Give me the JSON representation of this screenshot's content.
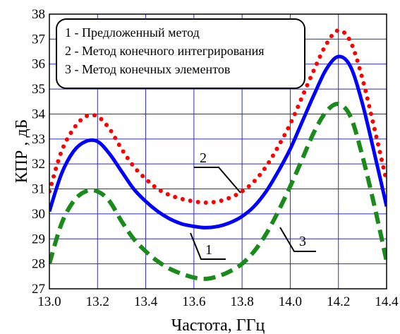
{
  "chart_data": {
    "type": "line",
    "xlabel": "Частота, ГГц",
    "ylabel": "КПР , дБ",
    "xlim": [
      13.0,
      14.4
    ],
    "ylim": [
      27,
      38
    ],
    "x_ticks": [
      "13.0",
      "13.2",
      "13.4",
      "13.6",
      "13.8",
      "14.0",
      "14.2",
      "14.4"
    ],
    "y_ticks": [
      "27",
      "28",
      "29",
      "30",
      "31",
      "32",
      "33",
      "34",
      "35",
      "36",
      "37",
      "38"
    ],
    "grid": true,
    "legend": {
      "placement": "top-left",
      "entries": [
        "1 - Предложенный метод",
        "2 - Метод конечного интегрирования",
        "3 - Метод конечных элементов"
      ]
    },
    "series": [
      {
        "label": "1",
        "style": "solid",
        "color": "#0000ff",
        "points": [
          [
            13.0,
            30.1
          ],
          [
            13.05,
            31.6
          ],
          [
            13.1,
            32.5
          ],
          [
            13.15,
            32.9
          ],
          [
            13.2,
            32.9
          ],
          [
            13.25,
            32.4
          ],
          [
            13.3,
            31.7
          ],
          [
            13.35,
            31.0
          ],
          [
            13.4,
            30.5
          ],
          [
            13.45,
            30.1
          ],
          [
            13.5,
            29.8
          ],
          [
            13.55,
            29.6
          ],
          [
            13.6,
            29.5
          ],
          [
            13.65,
            29.45
          ],
          [
            13.7,
            29.5
          ],
          [
            13.75,
            29.65
          ],
          [
            13.8,
            29.9
          ],
          [
            13.85,
            30.3
          ],
          [
            13.9,
            30.9
          ],
          [
            13.95,
            31.7
          ],
          [
            14.0,
            32.6
          ],
          [
            14.05,
            33.7
          ],
          [
            14.1,
            34.8
          ],
          [
            14.15,
            35.8
          ],
          [
            14.2,
            36.3
          ],
          [
            14.25,
            35.9
          ],
          [
            14.3,
            34.4
          ],
          [
            14.35,
            32.4
          ],
          [
            14.4,
            30.3
          ]
        ]
      },
      {
        "label": "2",
        "style": "dotted",
        "color": "#ff0000",
        "points": [
          [
            13.0,
            30.9
          ],
          [
            13.05,
            32.5
          ],
          [
            13.1,
            33.4
          ],
          [
            13.15,
            33.9
          ],
          [
            13.2,
            33.9
          ],
          [
            13.25,
            33.4
          ],
          [
            13.3,
            32.6
          ],
          [
            13.35,
            31.9
          ],
          [
            13.4,
            31.4
          ],
          [
            13.45,
            31.0
          ],
          [
            13.5,
            30.75
          ],
          [
            13.55,
            30.6
          ],
          [
            13.6,
            30.5
          ],
          [
            13.65,
            30.45
          ],
          [
            13.7,
            30.5
          ],
          [
            13.75,
            30.65
          ],
          [
            13.8,
            30.9
          ],
          [
            13.85,
            31.3
          ],
          [
            13.9,
            31.9
          ],
          [
            13.95,
            32.7
          ],
          [
            14.0,
            33.6
          ],
          [
            14.05,
            34.7
          ],
          [
            14.1,
            35.8
          ],
          [
            14.15,
            36.8
          ],
          [
            14.2,
            37.35
          ],
          [
            14.25,
            36.9
          ],
          [
            14.3,
            35.4
          ],
          [
            14.35,
            33.4
          ],
          [
            14.4,
            31.3
          ]
        ]
      },
      {
        "label": "3",
        "style": "dashed",
        "color": "#1a8a1a",
        "points": [
          [
            13.0,
            28.0
          ],
          [
            13.05,
            29.6
          ],
          [
            13.1,
            30.5
          ],
          [
            13.15,
            30.9
          ],
          [
            13.2,
            30.9
          ],
          [
            13.25,
            30.5
          ],
          [
            13.3,
            29.7
          ],
          [
            13.35,
            29.0
          ],
          [
            13.4,
            28.5
          ],
          [
            13.45,
            28.1
          ],
          [
            13.5,
            27.8
          ],
          [
            13.55,
            27.6
          ],
          [
            13.6,
            27.45
          ],
          [
            13.65,
            27.4
          ],
          [
            13.7,
            27.5
          ],
          [
            13.75,
            27.7
          ],
          [
            13.8,
            28.0
          ],
          [
            13.85,
            28.5
          ],
          [
            13.9,
            29.2
          ],
          [
            13.95,
            30.1
          ],
          [
            14.0,
            31.1
          ],
          [
            14.05,
            32.2
          ],
          [
            14.1,
            33.3
          ],
          [
            14.15,
            34.1
          ],
          [
            14.2,
            34.4
          ],
          [
            14.25,
            33.9
          ],
          [
            14.3,
            32.3
          ],
          [
            14.35,
            30.3
          ],
          [
            14.4,
            28.1
          ]
        ]
      }
    ],
    "callouts": [
      {
        "text": "1",
        "x": 13.68,
        "y": 29.45
      },
      {
        "text": "2",
        "x": 13.8,
        "y": 30.9
      },
      {
        "text": "3",
        "x": 13.97,
        "y": 30.0
      }
    ]
  }
}
